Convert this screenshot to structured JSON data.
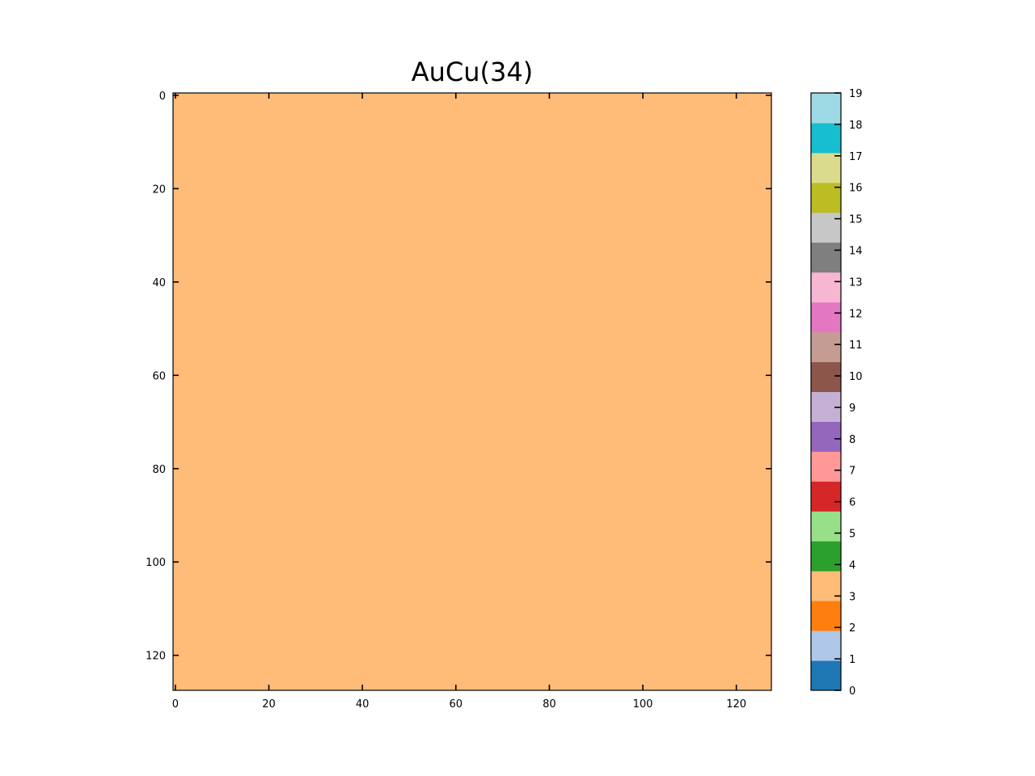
{
  "chart_data": {
    "type": "heatmap",
    "title": "AuCu(34)",
    "xlabel": "",
    "ylabel": "",
    "grid": false,
    "xlim": [
      -0.5,
      127.5
    ],
    "ylim": [
      127.5,
      -0.5
    ],
    "x_ticks": [
      0,
      20,
      40,
      60,
      80,
      100,
      120
    ],
    "y_ticks": [
      0,
      20,
      40,
      60,
      80,
      100,
      120
    ],
    "x_tick_labels": [
      "0",
      "20",
      "40",
      "60",
      "80",
      "100",
      "120"
    ],
    "y_tick_labels": [
      "0",
      "20",
      "40",
      "60",
      "80",
      "100",
      "120"
    ],
    "grid_size": [
      128,
      128
    ],
    "uniform_value": 3,
    "colorbar": {
      "placement": "right",
      "vmin": 0,
      "vmax": 19,
      "ticks": [
        0,
        1,
        2,
        3,
        4,
        5,
        6,
        7,
        8,
        9,
        10,
        11,
        12,
        13,
        14,
        15,
        16,
        17,
        18,
        19
      ],
      "tick_labels": [
        "0",
        "1",
        "2",
        "3",
        "4",
        "5",
        "6",
        "7",
        "8",
        "9",
        "10",
        "11",
        "12",
        "13",
        "14",
        "15",
        "16",
        "17",
        "18",
        "19"
      ],
      "colors": [
        "#1f77b4",
        "#aec7e8",
        "#ff7f0e",
        "#ffbb78",
        "#2ca02c",
        "#98df8a",
        "#d62728",
        "#ff9896",
        "#9467bd",
        "#c5b0d5",
        "#8c564b",
        "#c49c94",
        "#e377c2",
        "#f7b6d2",
        "#7f7f7f",
        "#c7c7c7",
        "#bcbd22",
        "#dbdb8d",
        "#17becf",
        "#9edae5"
      ]
    }
  }
}
